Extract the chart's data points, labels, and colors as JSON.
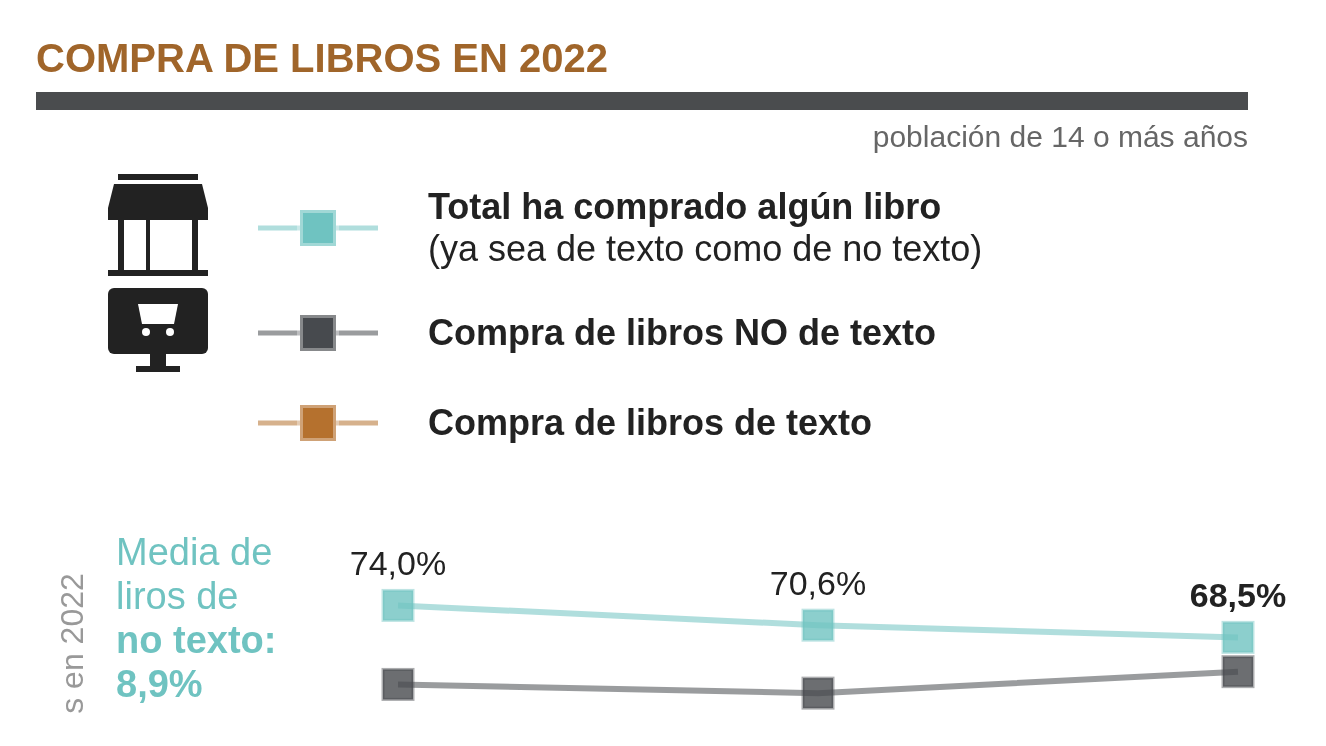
{
  "chart_data": {
    "type": "line",
    "title": "COMPRA DE LIBROS EN 2022",
    "subtitle": "población de 14 o más años",
    "ylabel": "s en 2022",
    "annotations": [
      "Media de liros de",
      "no texto:",
      "8,9%"
    ],
    "categories": [
      null,
      null,
      null
    ],
    "series": [
      {
        "name": "Total ha comprado algún libro\n(ya sea de texto como de no texto)",
        "color": "#6fc3c1",
        "values": [
          74.0,
          70.6,
          68.5
        ],
        "value_labels": [
          "74,0%",
          "70,6%",
          "68,5%"
        ]
      },
      {
        "name": "Compra de libros NO de texto",
        "color": "#474a4e",
        "values": [
          60.4,
          58.9,
          62.6
        ]
      },
      {
        "name": "Compra de libros de texto",
        "color": "#b5712e",
        "values": [
          null,
          null,
          null
        ]
      }
    ],
    "tick_labels": false,
    "legend": "top",
    "marker": "square",
    "line_style": "solid",
    "grid": false
  }
}
